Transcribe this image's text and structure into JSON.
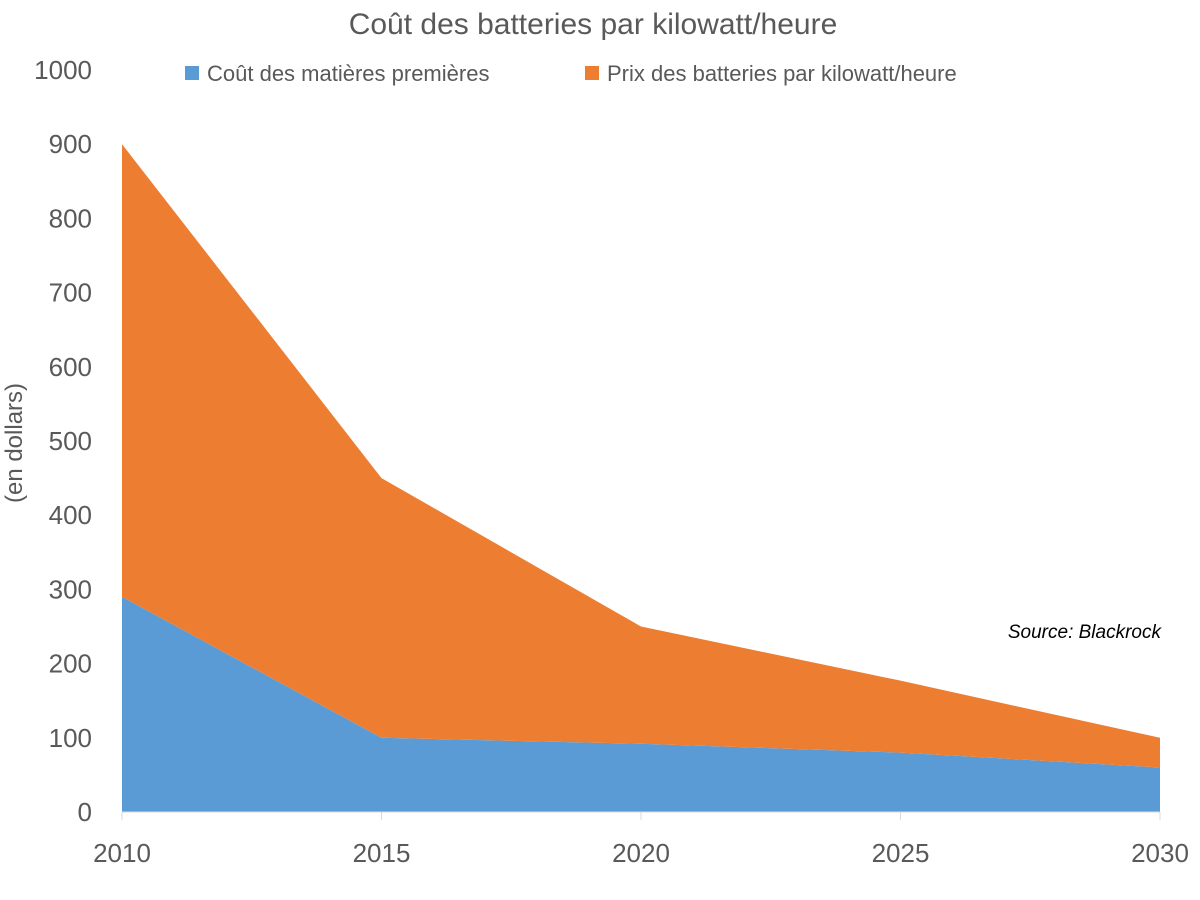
{
  "chart_data": {
    "type": "area",
    "stacked": true,
    "title": "Coût des batteries par kilowatt/heure",
    "ylabel": "(en dollars)",
    "xlabel": "",
    "x": [
      2010,
      2015,
      2020,
      2025,
      2030
    ],
    "x_tick_labels": [
      "2010",
      "2015",
      "2020",
      "2025",
      "2030"
    ],
    "ylim": [
      0,
      1000
    ],
    "y_tick_labels": [
      "0",
      "100",
      "200",
      "300",
      "400",
      "500",
      "600",
      "700",
      "800",
      "900",
      "1000"
    ],
    "grid": false,
    "legend_position": "top",
    "series": [
      {
        "name": "Coût des matières premières",
        "color": "#5b9bd5",
        "values": [
          290,
          100,
          92,
          80,
          60
        ]
      },
      {
        "name": "Prix des batteries par kilowatt/heure",
        "color": "#ed7d31",
        "values": [
          610,
          350,
          158,
          97,
          40
        ]
      }
    ],
    "annotation": "Source: Blackrock"
  }
}
